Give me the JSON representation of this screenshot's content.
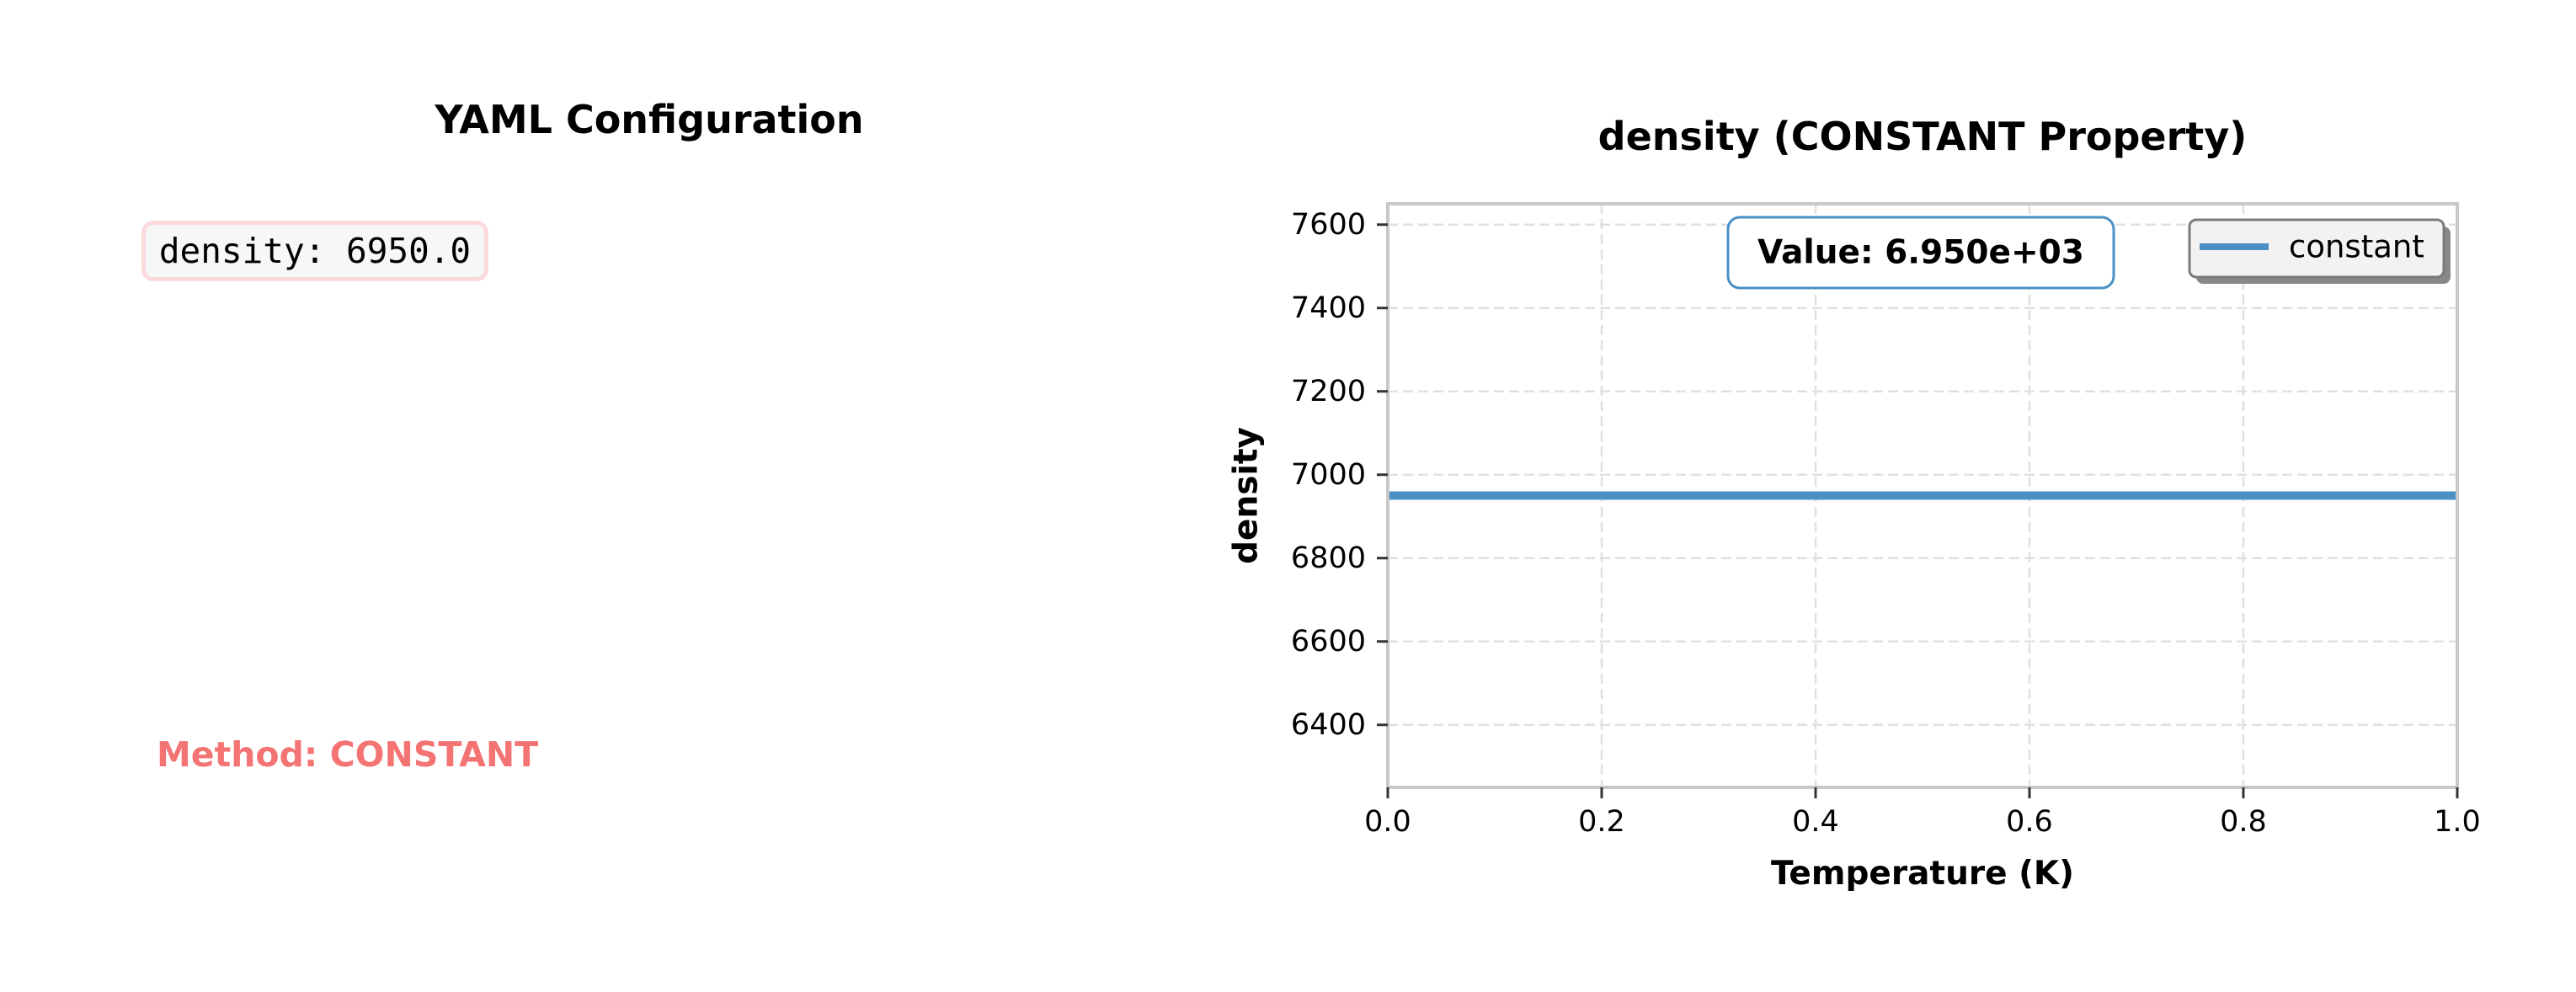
{
  "left_panel": {
    "title": "YAML Configuration",
    "yaml_text": "density: 6950.0",
    "method_text": "Method: CONSTANT"
  },
  "colors": {
    "series": "#4a90c4",
    "method_text": "#f47373",
    "yaml_border": "#fadadd",
    "yaml_background": "#f7f7f7"
  },
  "chart_data": {
    "type": "line",
    "title": "density (CONSTANT Property)",
    "xlabel": "Temperature (K)",
    "ylabel": "density",
    "xlim": [
      0.0,
      1.0
    ],
    "ylim": [
      6250,
      7650
    ],
    "x_ticks": [
      0.0,
      0.2,
      0.4,
      0.6,
      0.8,
      1.0
    ],
    "x_tick_labels": [
      "0.0",
      "0.2",
      "0.4",
      "0.6",
      "0.8",
      "1.0"
    ],
    "y_ticks": [
      6400,
      6600,
      6800,
      7000,
      7200,
      7400,
      7600
    ],
    "y_tick_labels": [
      "6400",
      "6600",
      "6800",
      "7000",
      "7200",
      "7400",
      "7600"
    ],
    "grid": true,
    "legend_position": "top-right",
    "annotation": "Value: 6.950e+03",
    "series": [
      {
        "name": "constant",
        "x": [
          0.0,
          1.0
        ],
        "y": [
          6950.0,
          6950.0
        ]
      }
    ]
  }
}
